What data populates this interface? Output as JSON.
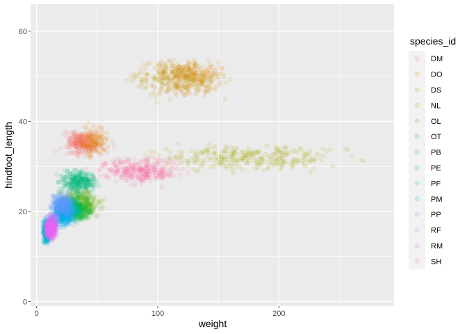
{
  "chart_data": {
    "type": "scatter",
    "title": "",
    "xlabel": "weight",
    "ylabel": "hindfoot_length",
    "xlim": [
      -5,
      295
    ],
    "ylim": [
      -1,
      66
    ],
    "x_ticks": [
      0,
      100,
      200
    ],
    "y_ticks": [
      0,
      20,
      40,
      60
    ],
    "grid": true,
    "point_alpha": 0.1,
    "legend": {
      "title": "species_id",
      "placement": "right"
    },
    "series": [
      {
        "name": "DM",
        "color": "#F8766D",
        "clusters": [
          {
            "x": [
              10,
              70
            ],
            "y": [
              30,
              40
            ],
            "weight": 0.3
          },
          {
            "x": [
              20,
              55
            ],
            "y": [
              32,
              39
            ],
            "weight": 0.7
          }
        ]
      },
      {
        "name": "DO",
        "color": "#E58700",
        "clusters": [
          {
            "x": [
              90,
              165
            ],
            "y": [
              45,
              55
            ],
            "weight": 0.6
          },
          {
            "x": [
              30,
              65
            ],
            "y": [
              31,
              40
            ],
            "weight": 0.4
          }
        ]
      },
      {
        "name": "DS",
        "color": "#C99800",
        "clusters": [
          {
            "x": [
              65,
              170
            ],
            "y": [
              44,
              55
            ],
            "weight": 1.0
          }
        ]
      },
      {
        "name": "NL",
        "color": "#A3A500",
        "clusters": [
          {
            "x": [
              60,
              280
            ],
            "y": [
              28,
              36
            ],
            "weight": 1.0
          }
        ]
      },
      {
        "name": "OL",
        "color": "#6BB100",
        "clusters": [
          {
            "x": [
              15,
              60
            ],
            "y": [
              17,
              26
            ],
            "weight": 1.0
          }
        ]
      },
      {
        "name": "OT",
        "color": "#00BA38",
        "clusters": [
          {
            "x": [
              15,
              50
            ],
            "y": [
              17,
              24
            ],
            "weight": 1.0
          }
        ]
      },
      {
        "name": "PB",
        "color": "#00BF7D",
        "clusters": [
          {
            "x": [
              15,
              55
            ],
            "y": [
              23,
              30
            ],
            "weight": 1.0
          }
        ]
      },
      {
        "name": "PE",
        "color": "#00C0AF",
        "clusters": [
          {
            "x": [
              10,
              40
            ],
            "y": [
              17,
              24
            ],
            "weight": 1.0
          }
        ]
      },
      {
        "name": "PF",
        "color": "#00BCD8",
        "clusters": [
          {
            "x": [
              4,
              12
            ],
            "y": [
              12,
              19
            ],
            "weight": 1.0
          }
        ]
      },
      {
        "name": "PM",
        "color": "#00B0F6",
        "clusters": [
          {
            "x": [
              10,
              35
            ],
            "y": [
              16,
              23
            ],
            "weight": 1.0
          }
        ]
      },
      {
        "name": "PP",
        "color": "#619CFF",
        "clusters": [
          {
            "x": [
              8,
              35
            ],
            "y": [
              18,
              25
            ],
            "weight": 1.0
          }
        ]
      },
      {
        "name": "RF",
        "color": "#B983FF",
        "clusters": [
          {
            "x": [
              6,
              20
            ],
            "y": [
              15,
              20
            ],
            "weight": 1.0
          }
        ]
      },
      {
        "name": "RM",
        "color": "#E76BF3",
        "clusters": [
          {
            "x": [
              5,
              18
            ],
            "y": [
              13,
              19
            ],
            "weight": 1.0
          }
        ]
      },
      {
        "name": "SH",
        "color": "#FF67A4",
        "clusters": [
          {
            "x": [
              40,
              130
            ],
            "y": [
              25,
              33
            ],
            "weight": 1.0
          }
        ]
      }
    ]
  }
}
